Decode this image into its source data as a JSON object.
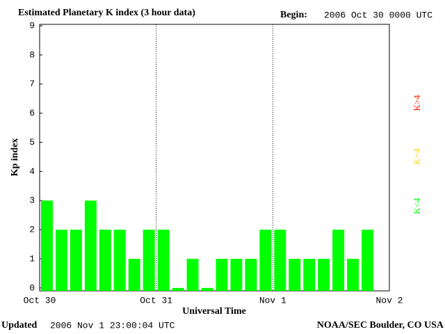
{
  "chart_data": {
    "type": "bar",
    "title": "Estimated Planetary K index (3 hour data)",
    "begin_label": "Begin:",
    "begin_value": "2006 Oct 30 0000 UTC",
    "updated_label": "Updated",
    "updated_value": "2006 Nov  1 23:00:04 UTC",
    "source": "NOAA/SEC Boulder, CO USA",
    "xlabel": "Universal Time",
    "ylabel": "Kp index",
    "x": [
      0,
      3,
      6,
      9,
      12,
      15,
      18,
      21,
      24,
      27,
      30,
      33,
      36,
      39,
      42,
      45,
      48,
      51,
      54,
      57,
      60,
      63,
      66,
      69
    ],
    "series": [
      {
        "name": "K<4",
        "color": "#00ff00",
        "values": [
          3,
          2,
          2,
          3,
          2,
          2,
          1,
          2,
          2,
          0,
          1,
          0,
          1,
          1,
          1,
          2,
          2,
          1,
          1,
          1,
          2,
          1,
          2,
          null
        ]
      }
    ],
    "legend": [
      {
        "name": "K<4",
        "color": "#00ff00"
      },
      {
        "name": "K=4",
        "color": "#ffd700"
      },
      {
        "name": "K>4",
        "color": "#ff2000"
      }
    ],
    "xlim": [
      0,
      72
    ],
    "xticks": [
      {
        "value": 0,
        "label": "Oct 30"
      },
      {
        "value": 24,
        "label": "Oct 31"
      },
      {
        "value": 48,
        "label": "Nov 1"
      },
      {
        "value": 72,
        "label": "Nov 2"
      }
    ],
    "ylim": [
      -0.1,
      9.05
    ],
    "yticks": [
      0,
      1,
      2,
      3,
      4,
      5,
      6,
      7,
      8,
      9
    ],
    "grid": true
  }
}
